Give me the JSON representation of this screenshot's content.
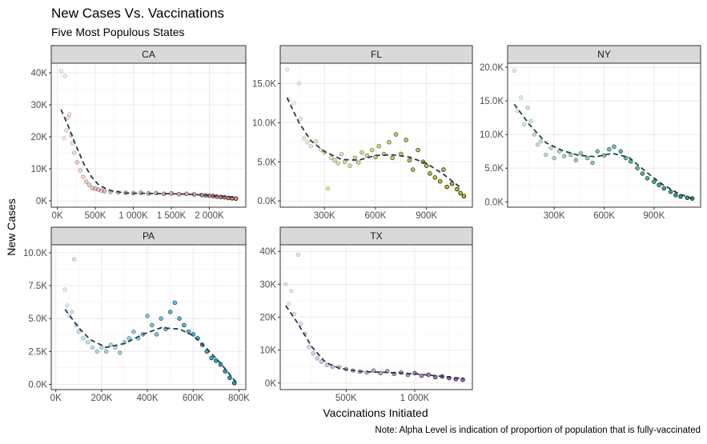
{
  "title": "New Cases Vs. Vaccinations",
  "subtitle": "Five Most Populous States",
  "xlabel": "Vaccinations Initiated",
  "ylabel": "New Cases",
  "caption": "Note: Alpha Level is indication of proportion of population that is fully-vaccinated",
  "chart_data": [
    {
      "type": "scatter",
      "panel": "CA",
      "color": "#e8807a",
      "xlim": [
        -80000,
        2480000
      ],
      "ylim": [
        -2000,
        43000
      ],
      "xticks": [
        0,
        500000,
        1000000,
        1500000,
        2000000
      ],
      "xtick_labels": [
        "0K",
        "500K",
        "1 000K",
        "1 500K",
        "2 000K"
      ],
      "yticks": [
        0,
        10000,
        20000,
        30000,
        40000
      ],
      "ytick_labels": [
        "0K",
        "10K",
        "20K",
        "30K",
        "40K"
      ],
      "trend": [
        [
          50000,
          28500
        ],
        [
          150000,
          23000
        ],
        [
          250000,
          17000
        ],
        [
          350000,
          11500
        ],
        [
          450000,
          7500
        ],
        [
          550000,
          4800
        ],
        [
          700000,
          3200
        ],
        [
          900000,
          2400
        ],
        [
          1200000,
          2300
        ],
        [
          1500000,
          2200
        ],
        [
          1800000,
          2000
        ],
        [
          2100000,
          1500
        ],
        [
          2350000,
          1100
        ]
      ],
      "points": {
        "x": [
          50000,
          100000,
          90000,
          120000,
          140000,
          160000,
          180000,
          200000,
          220000,
          260000,
          300000,
          340000,
          380000,
          420000,
          460000,
          500000,
          540000,
          580000,
          620000,
          700000,
          800000,
          900000,
          1000000,
          1100000,
          1200000,
          1300000,
          1400000,
          1500000,
          1600000,
          1700000,
          1800000,
          1900000,
          1950000,
          2000000,
          2050000,
          2100000,
          2150000,
          2200000,
          2250000,
          2300000,
          2350000
        ],
        "y": [
          40500,
          39000,
          19500,
          22000,
          26000,
          27000,
          20500,
          18000,
          15000,
          12000,
          9500,
          7500,
          6000,
          5000,
          4000,
          3800,
          3500,
          3200,
          3000,
          2800,
          2600,
          2500,
          2400,
          2500,
          2300,
          2400,
          2200,
          2300,
          2100,
          2200,
          2000,
          1800,
          1700,
          1600,
          1500,
          1300,
          1200,
          1100,
          900,
          800,
          700
        ],
        "alpha": [
          0.2,
          0.2,
          0.2,
          0.25,
          0.25,
          0.25,
          0.3,
          0.3,
          0.3,
          0.35,
          0.35,
          0.35,
          0.4,
          0.4,
          0.4,
          0.45,
          0.45,
          0.45,
          0.5,
          0.5,
          0.5,
          0.55,
          0.55,
          0.6,
          0.6,
          0.6,
          0.65,
          0.65,
          0.7,
          0.7,
          0.75,
          0.8,
          0.85,
          0.85,
          0.9,
          0.9,
          0.95,
          0.95,
          1,
          1,
          1
        ]
      }
    },
    {
      "type": "scatter",
      "panel": "FL",
      "color": "#b8b820",
      "xlim": [
        40000,
        1170000
      ],
      "ylim": [
        -800,
        17600
      ],
      "xticks": [
        300000,
        600000,
        900000
      ],
      "xtick_labels": [
        "300K",
        "600K",
        "900K"
      ],
      "yticks": [
        0,
        5000,
        10000,
        15000
      ],
      "ytick_labels": [
        "0.0K",
        "5.0K",
        "10.0K",
        "15.0K"
      ],
      "trend": [
        [
          80000,
          13200
        ],
        [
          150000,
          10000
        ],
        [
          220000,
          7700
        ],
        [
          300000,
          6300
        ],
        [
          400000,
          5300
        ],
        [
          500000,
          5200
        ],
        [
          600000,
          5800
        ],
        [
          700000,
          5900
        ],
        [
          800000,
          5600
        ],
        [
          900000,
          4800
        ],
        [
          1000000,
          3400
        ],
        [
          1100000,
          1700
        ]
      ],
      "points": {
        "x": [
          80000,
          90000,
          120000,
          150000,
          160000,
          180000,
          200000,
          220000,
          250000,
          280000,
          300000,
          320000,
          340000,
          360000,
          380000,
          400000,
          420000,
          450000,
          480000,
          500000,
          520000,
          550000,
          580000,
          600000,
          620000,
          650000,
          680000,
          700000,
          720000,
          750000,
          780000,
          800000,
          820000,
          850000,
          880000,
          900000,
          920000,
          950000,
          980000,
          1000000,
          1020000,
          1050000,
          1080000,
          1100000,
          1120000
        ],
        "y": [
          16800,
          13000,
          12500,
          15000,
          10500,
          8000,
          7500,
          7000,
          7600,
          6500,
          6200,
          1600,
          5500,
          5200,
          4800,
          6000,
          5000,
          4500,
          5500,
          4900,
          6200,
          5800,
          6500,
          5600,
          7000,
          6000,
          7500,
          5500,
          8500,
          6000,
          7800,
          5200,
          4000,
          6500,
          5000,
          4500,
          3500,
          3000,
          2500,
          4000,
          1800,
          2200,
          1500,
          1000,
          600
        ],
        "alpha": [
          0.2,
          0.2,
          0.2,
          0.2,
          0.25,
          0.25,
          0.25,
          0.3,
          0.3,
          0.3,
          0.35,
          0.35,
          0.35,
          0.4,
          0.4,
          0.4,
          0.45,
          0.45,
          0.5,
          0.5,
          0.5,
          0.55,
          0.55,
          0.6,
          0.6,
          0.65,
          0.65,
          0.7,
          0.7,
          0.75,
          0.75,
          0.8,
          0.8,
          0.85,
          0.85,
          0.9,
          0.9,
          0.9,
          0.95,
          0.95,
          1,
          1,
          1,
          1,
          1
        ]
      }
    },
    {
      "type": "scatter",
      "panel": "NY",
      "color": "#1fa383",
      "xlim": [
        20000,
        1180000
      ],
      "ylim": [
        -800,
        20600
      ],
      "xticks": [
        300000,
        600000,
        900000
      ],
      "xtick_labels": [
        "300K",
        "600K",
        "900K"
      ],
      "yticks": [
        0,
        5000,
        10000,
        15000,
        20000
      ],
      "ytick_labels": [
        "0.0K",
        "5.0K",
        "10.0K",
        "15.0K",
        "20.0K"
      ],
      "trend": [
        [
          60000,
          14500
        ],
        [
          150000,
          11500
        ],
        [
          250000,
          8800
        ],
        [
          350000,
          7600
        ],
        [
          450000,
          6900
        ],
        [
          550000,
          6700
        ],
        [
          650000,
          7200
        ],
        [
          750000,
          6600
        ],
        [
          850000,
          4500
        ],
        [
          950000,
          2600
        ],
        [
          1050000,
          1200
        ],
        [
          1130000,
          500
        ]
      ],
      "points": {
        "x": [
          60000,
          80000,
          100000,
          120000,
          140000,
          160000,
          180000,
          200000,
          220000,
          250000,
          280000,
          300000,
          330000,
          360000,
          400000,
          430000,
          460000,
          500000,
          530000,
          560000,
          600000,
          630000,
          660000,
          700000,
          730000,
          760000,
          800000,
          830000,
          860000,
          900000,
          930000,
          960000,
          1000000,
          1030000,
          1060000,
          1100000,
          1130000
        ],
        "y": [
          19500,
          13500,
          15500,
          11500,
          14000,
          12000,
          10000,
          8500,
          9000,
          7000,
          8000,
          6500,
          7500,
          6800,
          7000,
          6200,
          7200,
          6500,
          5800,
          7500,
          6900,
          7800,
          8200,
          7500,
          6500,
          6000,
          5000,
          4200,
          3500,
          3000,
          2500,
          2000,
          1500,
          1000,
          800,
          600,
          500
        ],
        "alpha": [
          0.2,
          0.2,
          0.2,
          0.25,
          0.25,
          0.25,
          0.3,
          0.3,
          0.3,
          0.35,
          0.35,
          0.4,
          0.4,
          0.45,
          0.45,
          0.5,
          0.5,
          0.55,
          0.55,
          0.6,
          0.6,
          0.65,
          0.65,
          0.7,
          0.7,
          0.75,
          0.75,
          0.8,
          0.8,
          0.85,
          0.85,
          0.9,
          0.9,
          0.95,
          1,
          1,
          1
        ]
      }
    },
    {
      "type": "scatter",
      "panel": "PA",
      "color": "#1ca6d6",
      "xlim": [
        -20000,
        830000
      ],
      "ylim": [
        -400,
        10600
      ],
      "xticks": [
        0,
        200000,
        400000,
        600000,
        800000
      ],
      "xtick_labels": [
        "0K",
        "200K",
        "400K",
        "600K",
        "800K"
      ],
      "yticks": [
        0,
        2500,
        5000,
        7500,
        10000
      ],
      "ytick_labels": [
        "0.0K",
        "2.5K",
        "5.0K",
        "7.5K",
        "10.0K"
      ],
      "trend": [
        [
          40000,
          5700
        ],
        [
          100000,
          4300
        ],
        [
          150000,
          3400
        ],
        [
          220000,
          2800
        ],
        [
          300000,
          3100
        ],
        [
          380000,
          3800
        ],
        [
          460000,
          4300
        ],
        [
          540000,
          4200
        ],
        [
          600000,
          3700
        ],
        [
          660000,
          2700
        ],
        [
          720000,
          1600
        ],
        [
          790000,
          100
        ]
      ],
      "points": {
        "x": [
          40000,
          50000,
          60000,
          70000,
          80000,
          90000,
          100000,
          120000,
          140000,
          160000,
          180000,
          200000,
          220000,
          240000,
          260000,
          280000,
          300000,
          320000,
          340000,
          360000,
          380000,
          400000,
          420000,
          440000,
          460000,
          480000,
          500000,
          520000,
          540000,
          560000,
          580000,
          600000,
          620000,
          640000,
          660000,
          680000,
          700000,
          720000,
          740000,
          760000,
          780000
        ],
        "y": [
          7200,
          6000,
          5200,
          5500,
          9500,
          4500,
          4000,
          3500,
          3200,
          2800,
          2500,
          2800,
          2500,
          3000,
          2800,
          2400,
          3200,
          3500,
          4000,
          3500,
          3800,
          5200,
          4500,
          3800,
          5000,
          4200,
          5500,
          6200,
          5000,
          4500,
          4000,
          3800,
          3500,
          3000,
          2500,
          2000,
          1800,
          1500,
          1000,
          500,
          100
        ],
        "alpha": [
          0.2,
          0.2,
          0.2,
          0.25,
          0.25,
          0.25,
          0.3,
          0.3,
          0.3,
          0.35,
          0.35,
          0.35,
          0.4,
          0.4,
          0.4,
          0.45,
          0.45,
          0.5,
          0.5,
          0.5,
          0.55,
          0.55,
          0.6,
          0.6,
          0.65,
          0.65,
          0.7,
          0.7,
          0.75,
          0.75,
          0.8,
          0.8,
          0.85,
          0.85,
          0.9,
          0.9,
          0.95,
          0.95,
          1,
          1,
          1
        ]
      }
    },
    {
      "type": "scatter",
      "panel": "TX",
      "color": "#b55ec9",
      "xlim": [
        20000,
        1420000
      ],
      "ylim": [
        -2000,
        42000
      ],
      "xticks": [
        500000,
        1000000
      ],
      "xtick_labels": [
        "500K",
        "1 000K"
      ],
      "yticks": [
        0,
        10000,
        20000,
        30000,
        40000
      ],
      "ytick_labels": [
        "0K",
        "10K",
        "20K",
        "30K",
        "40K"
      ],
      "trend": [
        [
          60000,
          23500
        ],
        [
          150000,
          18000
        ],
        [
          250000,
          11000
        ],
        [
          350000,
          6300
        ],
        [
          450000,
          4500
        ],
        [
          600000,
          3500
        ],
        [
          800000,
          3200
        ],
        [
          1000000,
          2800
        ],
        [
          1200000,
          2000
        ],
        [
          1360000,
          1300
        ]
      ],
      "points": {
        "x": [
          60000,
          80000,
          100000,
          120000,
          150000,
          170000,
          200000,
          230000,
          260000,
          290000,
          320000,
          360000,
          400000,
          450000,
          500000,
          550000,
          600000,
          650000,
          700000,
          750000,
          800000,
          850000,
          900000,
          950000,
          1000000,
          1050000,
          1100000,
          1150000,
          1200000,
          1250000,
          1300000,
          1350000
        ],
        "y": [
          30000,
          24000,
          28000,
          21000,
          39000,
          18000,
          15000,
          11000,
          9000,
          7500,
          6500,
          5500,
          5000,
          4800,
          4200,
          3800,
          3500,
          3200,
          3800,
          3000,
          3600,
          2800,
          3200,
          2500,
          3000,
          2200,
          2500,
          1800,
          2000,
          1500,
          1200,
          1000
        ],
        "alpha": [
          0.2,
          0.2,
          0.2,
          0.25,
          0.25,
          0.25,
          0.3,
          0.3,
          0.35,
          0.35,
          0.4,
          0.4,
          0.45,
          0.45,
          0.5,
          0.5,
          0.55,
          0.55,
          0.6,
          0.65,
          0.65,
          0.7,
          0.7,
          0.75,
          0.8,
          0.8,
          0.85,
          0.9,
          0.9,
          0.95,
          1,
          1
        ]
      }
    }
  ]
}
